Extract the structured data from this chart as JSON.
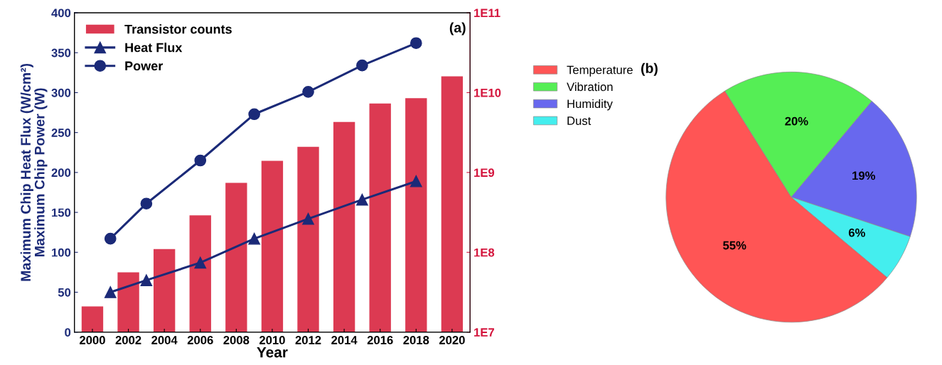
{
  "chart_data": [
    {
      "type": "bar",
      "xlabel": "Year",
      "ylabel": "Maximum Chip Heat Flux (W/cm²)\nMaximum Chip Power (W)",
      "xlim": [
        1999,
        2021
      ],
      "xticks": [
        2000,
        2002,
        2004,
        2006,
        2008,
        2010,
        2012,
        2014,
        2016,
        2018,
        2020
      ],
      "ylim": [
        0,
        400
      ],
      "yticks": [
        0,
        50,
        100,
        150,
        200,
        250,
        300,
        350,
        400
      ],
      "y2lim": [
        10000000.0,
        100000000000.0
      ],
      "y2ticks": [
        {
          "value": 10000000.0,
          "label": "1E7"
        },
        {
          "value": 100000000.0,
          "label": "1E8"
        },
        {
          "value": 1000000000.0,
          "label": "1E9"
        },
        {
          "value": 10000000000.0,
          "label": "1E10"
        },
        {
          "value": 100000000000.0,
          "label": "1E11"
        }
      ],
      "log": "y2",
      "grid": false,
      "legend": "top left",
      "annotations": [
        "(a)"
      ],
      "series": [
        {
          "name": "Transistor counts",
          "type": "bar",
          "axis": "y2",
          "color": "#dc3a52",
          "x": [
            2000,
            2002,
            2004,
            2006,
            2008,
            2010,
            2012,
            2014,
            2016,
            2018,
            2020
          ],
          "values": [
            21000000.0,
            56000000.0,
            110000000.0,
            290000000.0,
            740000000.0,
            1400000000.0,
            2100000000.0,
            4300000000.0,
            7300000000.0,
            8500000000.0,
            16000000000.0
          ]
        },
        {
          "name": "Heat Flux",
          "type": "line",
          "marker": "triangle",
          "color": "#1b2a78",
          "x": [
            2001,
            2003,
            2006,
            2009,
            2012,
            2015,
            2018
          ],
          "values": [
            50,
            65,
            87,
            117,
            142,
            166,
            189
          ]
        },
        {
          "name": "Power",
          "type": "line",
          "marker": "circle",
          "color": "#1b2a78",
          "x": [
            2001,
            2003,
            2006,
            2009,
            2012,
            2015,
            2018
          ],
          "values": [
            117,
            161,
            215,
            273,
            301,
            334,
            362
          ]
        }
      ]
    },
    {
      "type": "pie",
      "categories": [
        "Temperature",
        "Vibration",
        "Humidity",
        "Dust"
      ],
      "values": [
        55,
        20,
        19,
        6
      ],
      "colors": [
        "#ff5555",
        "#55ee55",
        "#6868ee",
        "#44eeee"
      ],
      "value_labels": [
        "55%",
        "20%",
        "19%",
        "6%"
      ],
      "legend": "top left",
      "annotations": [
        "(b)"
      ]
    }
  ]
}
